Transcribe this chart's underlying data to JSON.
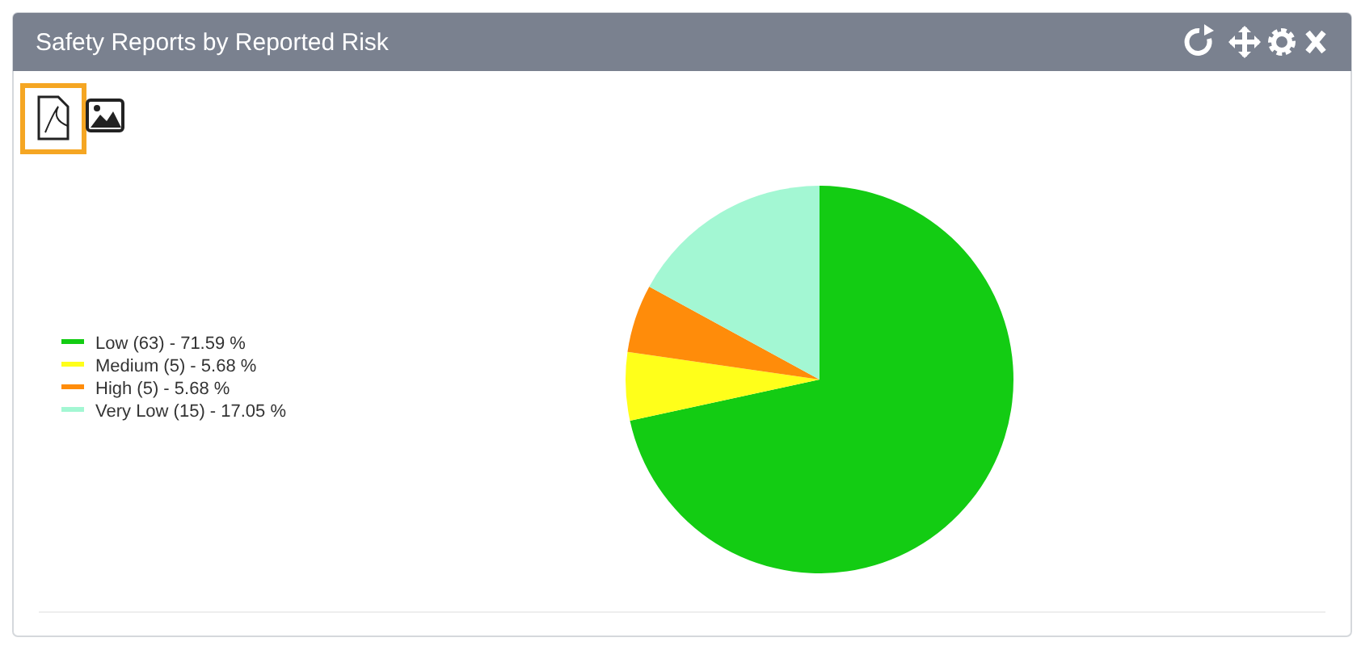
{
  "chart_data": {
    "type": "pie",
    "title": "Safety Reports by Reported Risk",
    "categories": [
      "Low (63) - 71.59 %",
      "Medium (5) - 5.68 %",
      "High (5) - 5.68 %",
      "Very Low (15) - 17.05 %"
    ],
    "values": [
      63,
      5,
      5,
      15
    ],
    "colors": [
      "#13cc13",
      "#ffff1a",
      "#ff8c0a",
      "#a3f7d3"
    ],
    "legend": "left"
  }
}
